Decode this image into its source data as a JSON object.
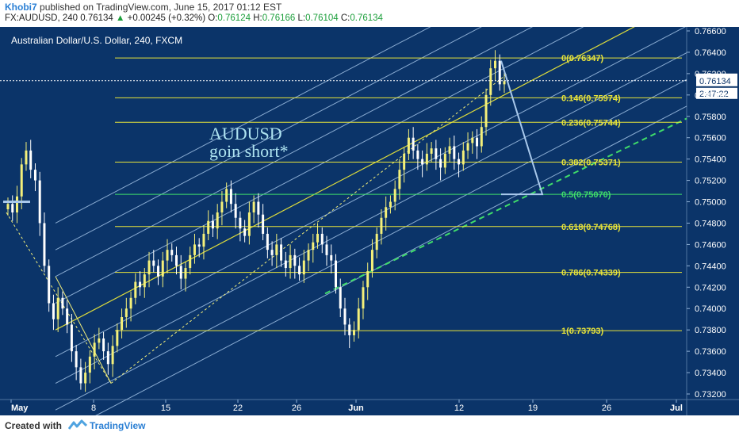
{
  "header": {
    "author": "Khobi7",
    "published": "published on TradingView.com, June 15, 2017 01:12 EST",
    "symbol": "FX:AUDUSD, 240",
    "last": "0.76134",
    "change": "+0.00245 (+0.32%)",
    "o_label": "O:",
    "o": "0.76124",
    "h_label": "H:",
    "h": "0.76166",
    "l_label": "L:",
    "l": "0.76104",
    "c_label": "C:",
    "c": "0.76134"
  },
  "footer": {
    "created_with": "Created with",
    "brand": "TradingView"
  },
  "colors": {
    "background": "#0b3469",
    "candle": "#f4f07a",
    "candle_alt": "#ffffff",
    "fib": "#e8e43a",
    "fib_half": "#3fdc6a",
    "channel": "#a9c9ec",
    "channel_mid": "#e8e43a",
    "support": "#3fdc6a",
    "note_text": "#aee3f0",
    "axis_text": "#ffffff"
  },
  "chart_data": {
    "type": "candlestick",
    "title": "Australian Dollar/U.S. Dollar, 240, FXCM",
    "annotation": [
      "AUDUSD",
      "goin short*"
    ],
    "last_price": "0.76134",
    "countdown": "2:47:22",
    "ylim": [
      0.732,
      0.766
    ],
    "y_ticks": [
      "0.76600",
      "0.76400",
      "0.76200",
      "0.76000",
      "0.75800",
      "0.75600",
      "0.75400",
      "0.75200",
      "0.75000",
      "0.74800",
      "0.74600",
      "0.74400",
      "0.74200",
      "0.74000",
      "0.73800",
      "0.73600",
      "0.73400",
      "0.73200"
    ],
    "x_labels": [
      "May",
      "8",
      "15",
      "22",
      "26",
      "Jun",
      "12",
      "19",
      "26",
      "Jul"
    ],
    "fib_levels": [
      {
        "label": "0(0.76347)",
        "ratio": 0,
        "price": 0.76347
      },
      {
        "label": "0.146(0.75974)",
        "ratio": 0.146,
        "price": 0.75974
      },
      {
        "label": "0.236(0.75744)",
        "ratio": 0.236,
        "price": 0.75744
      },
      {
        "label": "0.382(0.75371)",
        "ratio": 0.382,
        "price": 0.75371
      },
      {
        "label": "0.5(0.75070)",
        "ratio": 0.5,
        "price": 0.7507
      },
      {
        "label": "0.618(0.74768)",
        "ratio": 0.618,
        "price": 0.74768
      },
      {
        "label": "0.786(0.74339)",
        "ratio": 0.786,
        "price": 0.74339
      },
      {
        "label": "1(0.73793)",
        "ratio": 1,
        "price": 0.73793
      }
    ],
    "closes": [
      0.7498,
      0.749,
      0.7505,
      0.7535,
      0.7548,
      0.753,
      0.752,
      0.748,
      0.744,
      0.7405,
      0.739,
      0.741,
      0.74,
      0.7385,
      0.736,
      0.7345,
      0.733,
      0.734,
      0.7355,
      0.7368,
      0.7372,
      0.736,
      0.7348,
      0.7365,
      0.738,
      0.7392,
      0.74,
      0.741,
      0.7425,
      0.742,
      0.7432,
      0.7445,
      0.744,
      0.743,
      0.7445,
      0.7455,
      0.745,
      0.744,
      0.7428,
      0.7438,
      0.745,
      0.746,
      0.7458,
      0.747,
      0.7482,
      0.7475,
      0.749,
      0.75,
      0.7512,
      0.7498,
      0.7485,
      0.7475,
      0.7468,
      0.749,
      0.75,
      0.7488,
      0.747,
      0.7455,
      0.745,
      0.746,
      0.7445,
      0.7438,
      0.745,
      0.744,
      0.7432,
      0.7445,
      0.7455,
      0.7462,
      0.747,
      0.746,
      0.745,
      0.7445,
      0.742,
      0.74,
      0.7385,
      0.7375,
      0.738,
      0.74,
      0.742,
      0.7435,
      0.7455,
      0.747,
      0.7485,
      0.7495,
      0.75,
      0.7512,
      0.753,
      0.7545,
      0.756,
      0.7548,
      0.754,
      0.7535,
      0.7545,
      0.755,
      0.754,
      0.7532,
      0.7545,
      0.7552,
      0.754,
      0.7535,
      0.7548,
      0.7555,
      0.756,
      0.7552,
      0.757,
      0.76,
      0.7625,
      0.7632,
      0.761,
      0.7613
    ]
  }
}
